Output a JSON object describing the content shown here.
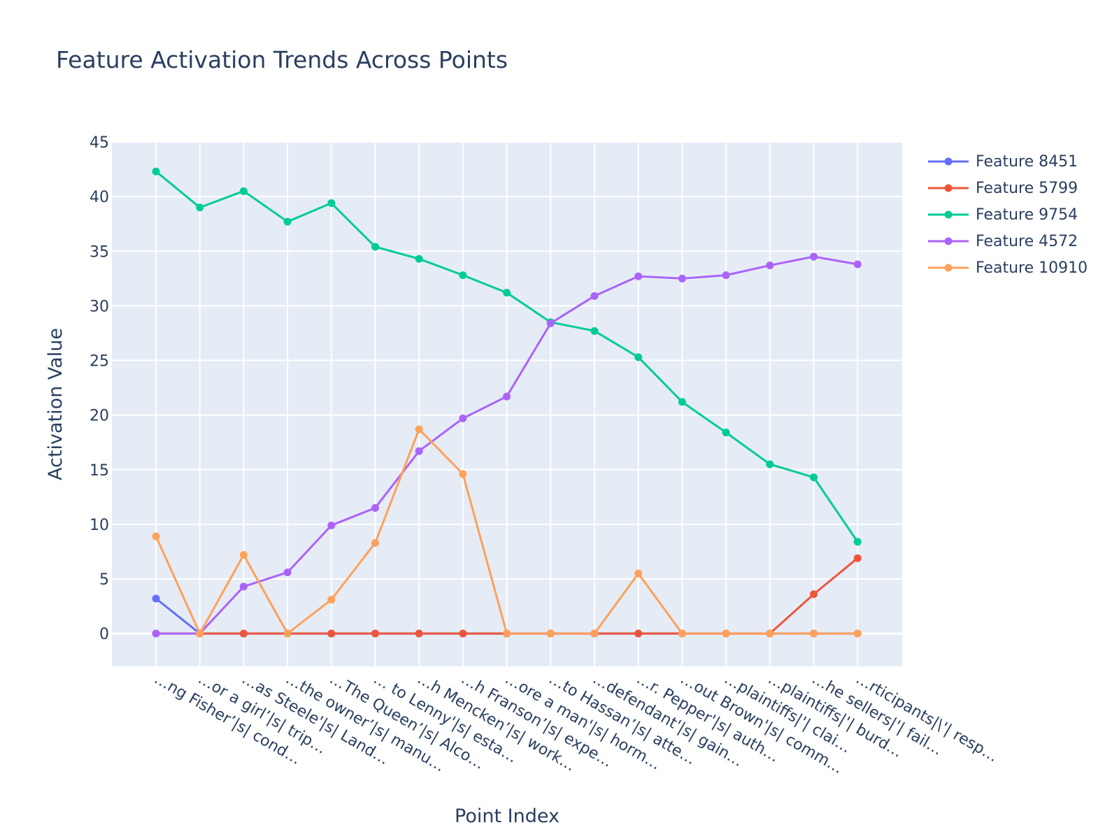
{
  "chart_data": {
    "type": "line",
    "title": "Feature Activation Trends Across Points",
    "xlabel": "Point Index",
    "ylabel": "Activation Value",
    "ylim": [
      -3,
      45
    ],
    "yticks": [
      0,
      5,
      10,
      15,
      20,
      25,
      30,
      35,
      40,
      45
    ],
    "categories": [
      "…ng Fisher’|s| cond…",
      "…or a girl’|s| trip…",
      "…as Steele'|s| Land…",
      "…the owner’|s| manu…",
      "…The Queen’|s| Alco…",
      "… to Lenny'|s| esta…",
      "…h Mencken’|s| work…",
      "…h Franson’|s| expe…",
      "…ore a man'|s| horm…",
      "…to Hassan’|s| atte…",
      "…defendant'|s| gain…",
      "…r. Pepper'|s| auth…",
      "…out Brown'|s| comm…",
      "…plaintiffs|'| clai…",
      "…plaintiffs|'| burd…",
      "…he sellers|'| fail…",
      "…rticipants|\\'| resp…"
    ],
    "series": [
      {
        "name": "Feature 8451",
        "color": "#636efa",
        "values": [
          3.2,
          0,
          0,
          0,
          0,
          0,
          0,
          0,
          0,
          0,
          0,
          0,
          0,
          0,
          0,
          0,
          0
        ]
      },
      {
        "name": "Feature 5799",
        "color": "#ef553b",
        "values": [
          0,
          0,
          0,
          0,
          0,
          0,
          0,
          0,
          0,
          0,
          0,
          0,
          0,
          0,
          0,
          3.6,
          6.9
        ]
      },
      {
        "name": "Feature 9754",
        "color": "#00cc96",
        "values": [
          42.3,
          39.0,
          40.5,
          37.7,
          39.4,
          35.4,
          34.3,
          32.8,
          31.2,
          28.5,
          27.7,
          25.3,
          21.2,
          18.4,
          15.5,
          14.3,
          8.4
        ]
      },
      {
        "name": "Feature 4572",
        "color": "#ab63fa",
        "values": [
          0,
          0,
          4.3,
          5.6,
          9.9,
          11.5,
          16.7,
          19.7,
          21.7,
          28.4,
          30.9,
          32.7,
          32.5,
          32.8,
          33.7,
          34.5,
          33.8
        ]
      },
      {
        "name": "Feature 10910",
        "color": "#ffa15a",
        "values": [
          8.9,
          0,
          7.2,
          0,
          3.1,
          8.3,
          18.7,
          14.6,
          0,
          0,
          0,
          5.5,
          0,
          0,
          0,
          0,
          0
        ]
      }
    ]
  }
}
